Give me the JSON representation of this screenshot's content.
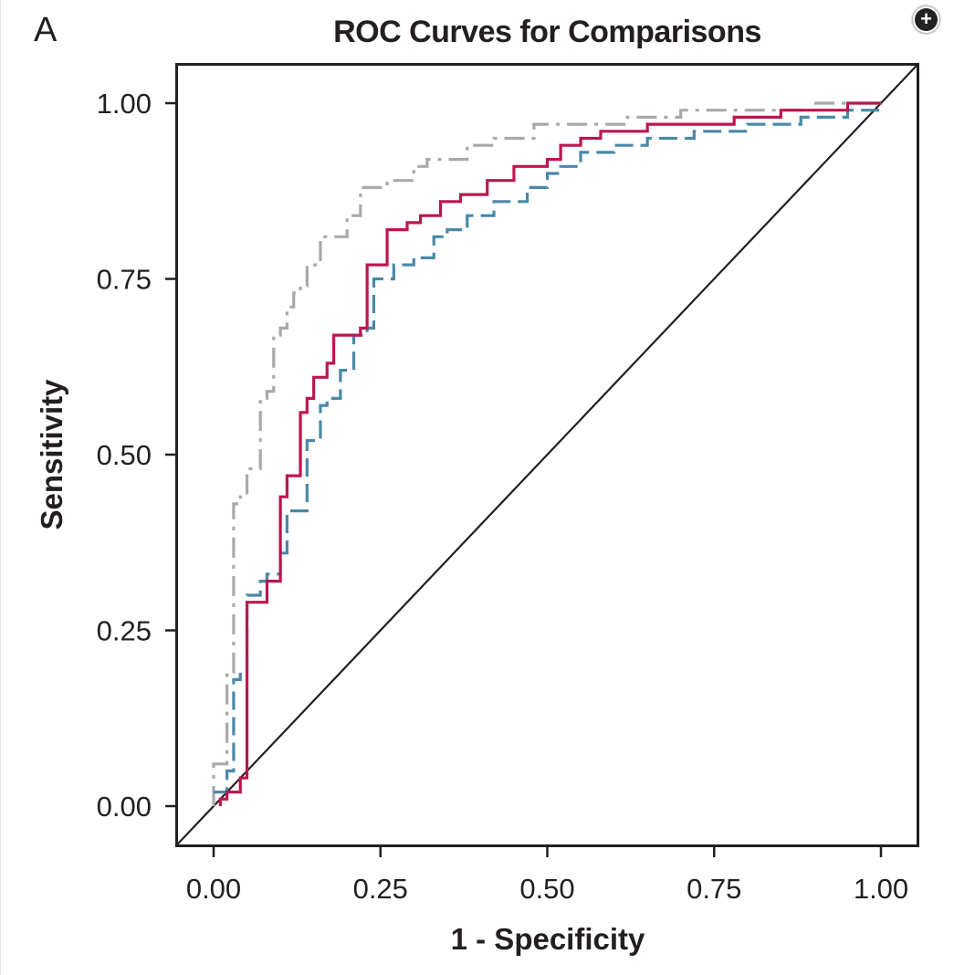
{
  "panel_label": "A",
  "expand_button": {
    "icon": "plus-circle-icon",
    "glyph": "+"
  },
  "chart_data": {
    "type": "line",
    "title": "ROC Curves for Comparisons",
    "xlabel": "1 - Specificity",
    "ylabel": "Sensitivity",
    "xlim": [
      0,
      1
    ],
    "ylim": [
      0,
      1
    ],
    "grid": false,
    "legend": "none",
    "x_ticks": [
      "0.00",
      "0.25",
      "0.50",
      "0.75",
      "1.00"
    ],
    "y_ticks": [
      "0.00",
      "0.25",
      "0.50",
      "0.75",
      "1.00"
    ],
    "reference_line": {
      "name": "chance-diagonal",
      "from": [
        0,
        0
      ],
      "to": [
        1,
        1
      ],
      "color": "#231f20"
    },
    "series": [
      {
        "name": "gray-dashed",
        "color": "#a7a9ac",
        "style": "dashed",
        "x": [
          0.0,
          0.0,
          0.01,
          0.02,
          0.02,
          0.03,
          0.03,
          0.04,
          0.05,
          0.05,
          0.06,
          0.07,
          0.07,
          0.08,
          0.09,
          0.1,
          0.11,
          0.12,
          0.13,
          0.14,
          0.14,
          0.16,
          0.16,
          0.2,
          0.2,
          0.22,
          0.22,
          0.26,
          0.3,
          0.32,
          0.38,
          0.42,
          0.48,
          0.55,
          0.62,
          0.7,
          0.8,
          0.9,
          1.0
        ],
        "y": [
          0.0,
          0.06,
          0.06,
          0.06,
          0.19,
          0.19,
          0.43,
          0.44,
          0.44,
          0.48,
          0.48,
          0.48,
          0.58,
          0.59,
          0.67,
          0.68,
          0.71,
          0.73,
          0.74,
          0.74,
          0.77,
          0.77,
          0.81,
          0.81,
          0.84,
          0.84,
          0.88,
          0.89,
          0.91,
          0.92,
          0.94,
          0.95,
          0.97,
          0.97,
          0.98,
          0.99,
          0.99,
          1.0,
          1.0
        ]
      },
      {
        "name": "crimson-solid",
        "color": "#bd1550",
        "style": "solid",
        "x": [
          0.01,
          0.01,
          0.02,
          0.02,
          0.04,
          0.04,
          0.05,
          0.05,
          0.08,
          0.08,
          0.1,
          0.1,
          0.11,
          0.11,
          0.13,
          0.13,
          0.14,
          0.14,
          0.15,
          0.15,
          0.17,
          0.17,
          0.18,
          0.18,
          0.21,
          0.21,
          0.22,
          0.22,
          0.23,
          0.23,
          0.26,
          0.26,
          0.29,
          0.31,
          0.34,
          0.37,
          0.39,
          0.41,
          0.45,
          0.5,
          0.5,
          0.52,
          0.55,
          0.58,
          0.6,
          0.65,
          0.72,
          0.78,
          0.85,
          0.95,
          1.0
        ],
        "y": [
          0.0,
          0.01,
          0.01,
          0.02,
          0.02,
          0.04,
          0.08,
          0.29,
          0.29,
          0.32,
          0.32,
          0.44,
          0.44,
          0.47,
          0.47,
          0.56,
          0.56,
          0.58,
          0.58,
          0.61,
          0.61,
          0.63,
          0.63,
          0.67,
          0.67,
          0.67,
          0.67,
          0.68,
          0.68,
          0.77,
          0.77,
          0.82,
          0.83,
          0.84,
          0.86,
          0.87,
          0.87,
          0.89,
          0.91,
          0.91,
          0.92,
          0.94,
          0.95,
          0.96,
          0.96,
          0.97,
          0.97,
          0.98,
          0.99,
          1.0,
          1.0
        ]
      },
      {
        "name": "blue-dashed",
        "color": "#4a88a8",
        "style": "dashed",
        "x": [
          0.0,
          0.02,
          0.02,
          0.03,
          0.03,
          0.04,
          0.04,
          0.05,
          0.05,
          0.07,
          0.08,
          0.08,
          0.1,
          0.1,
          0.11,
          0.12,
          0.14,
          0.14,
          0.16,
          0.16,
          0.17,
          0.19,
          0.19,
          0.21,
          0.23,
          0.23,
          0.24,
          0.24,
          0.27,
          0.3,
          0.33,
          0.35,
          0.38,
          0.42,
          0.45,
          0.47,
          0.5,
          0.52,
          0.55,
          0.6,
          0.65,
          0.72,
          0.8,
          0.88,
          0.95,
          1.0
        ],
        "y": [
          0.02,
          0.02,
          0.05,
          0.05,
          0.18,
          0.18,
          0.19,
          0.19,
          0.3,
          0.32,
          0.32,
          0.33,
          0.33,
          0.36,
          0.42,
          0.42,
          0.51,
          0.52,
          0.54,
          0.57,
          0.58,
          0.61,
          0.62,
          0.67,
          0.67,
          0.68,
          0.68,
          0.75,
          0.77,
          0.78,
          0.81,
          0.82,
          0.84,
          0.86,
          0.86,
          0.88,
          0.9,
          0.91,
          0.93,
          0.94,
          0.95,
          0.96,
          0.97,
          0.98,
          0.99,
          1.0
        ]
      }
    ]
  }
}
